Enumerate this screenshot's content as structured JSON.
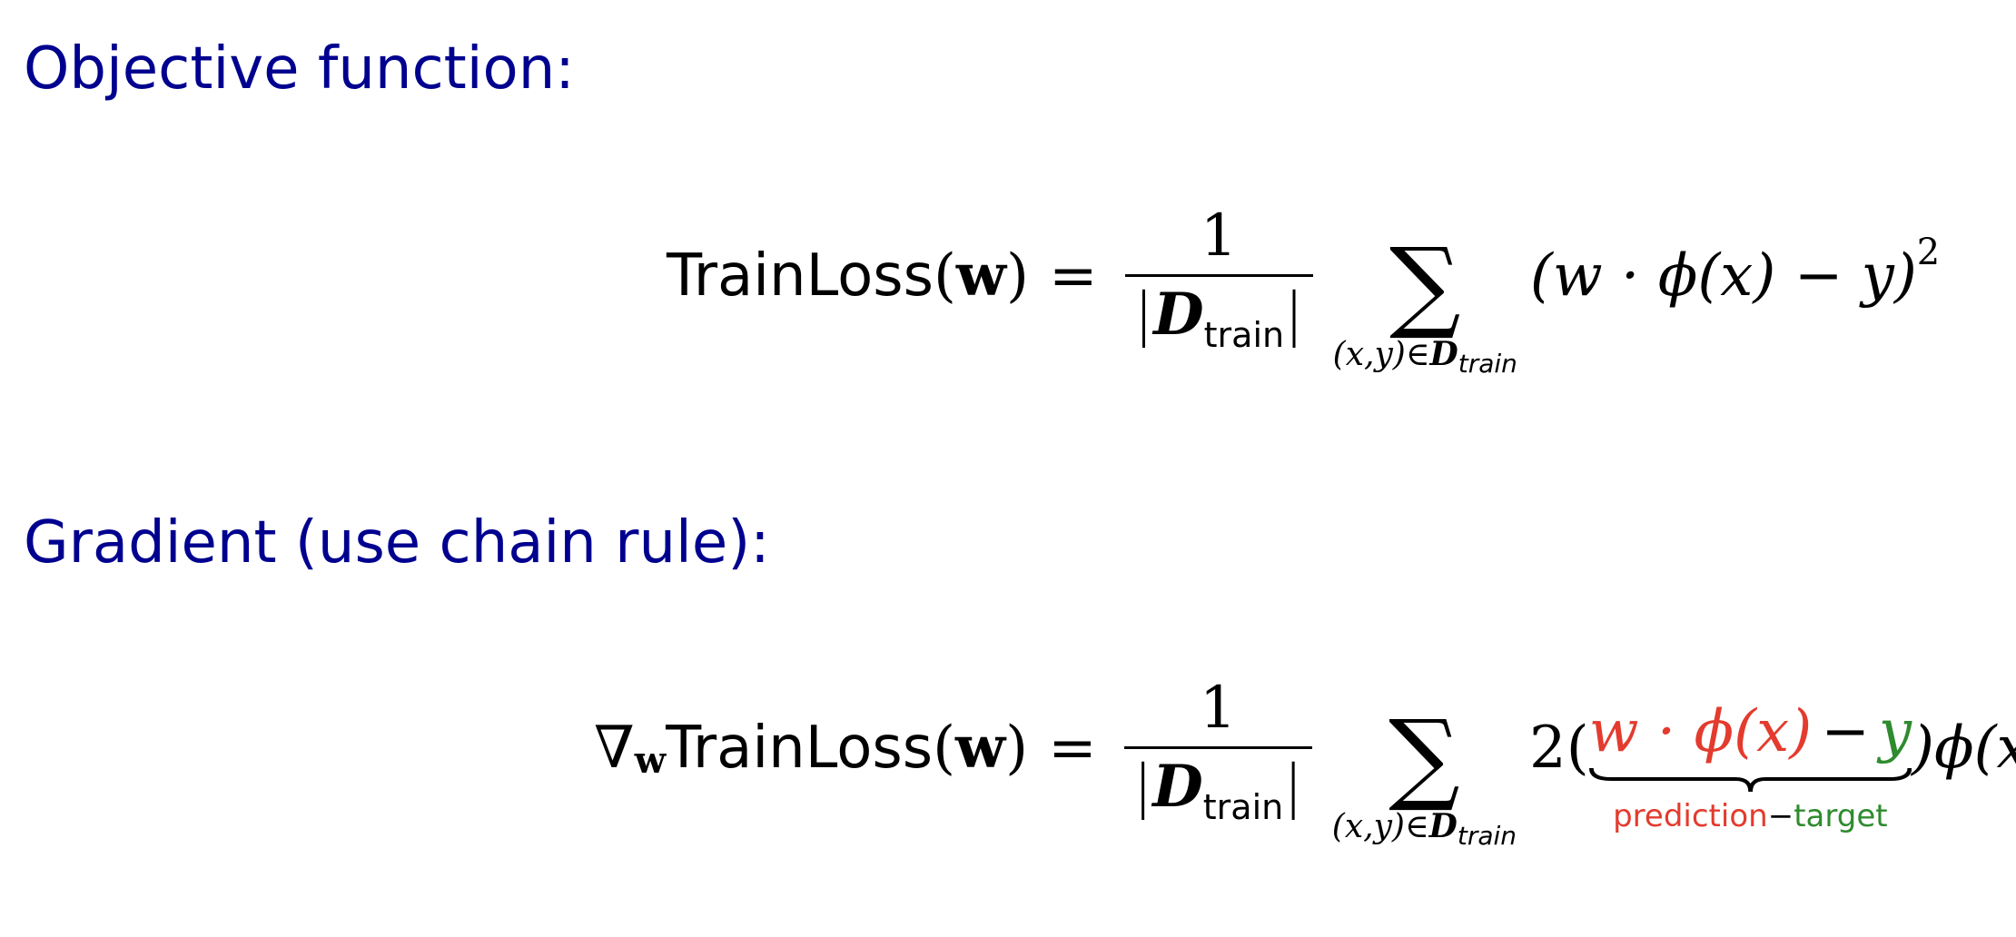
{
  "headings": {
    "objective": "Objective function:",
    "gradient": "Gradient (use chain rule):"
  },
  "objective_eq": {
    "lhs_name": "TrainLoss",
    "lhs_arg": "w",
    "numerator": "1",
    "set_symbol": "D",
    "set_subscript": "train",
    "sum_index": "(x,y)∈",
    "summand": "(w · ϕ(x) − y)",
    "exponent": "2"
  },
  "gradient_eq": {
    "nabla": "∇",
    "nabla_subscript": "w",
    "lhs_name": "TrainLoss",
    "lhs_arg": "w",
    "numerator": "1",
    "set_symbol": "D",
    "set_subscript": "train",
    "sum_index": "(x,y)∈",
    "coefficient": "2(",
    "prediction_expr": "w · ϕ(x)",
    "minus": "−",
    "target_expr": "y",
    "tail": ")ϕ(x)",
    "brace_label_prediction": "prediction",
    "brace_label_minus": "−",
    "brace_label_target": "target"
  },
  "colors": {
    "heading": "#00008f",
    "prediction": "#e33b2e",
    "target": "#2e8b2e"
  }
}
